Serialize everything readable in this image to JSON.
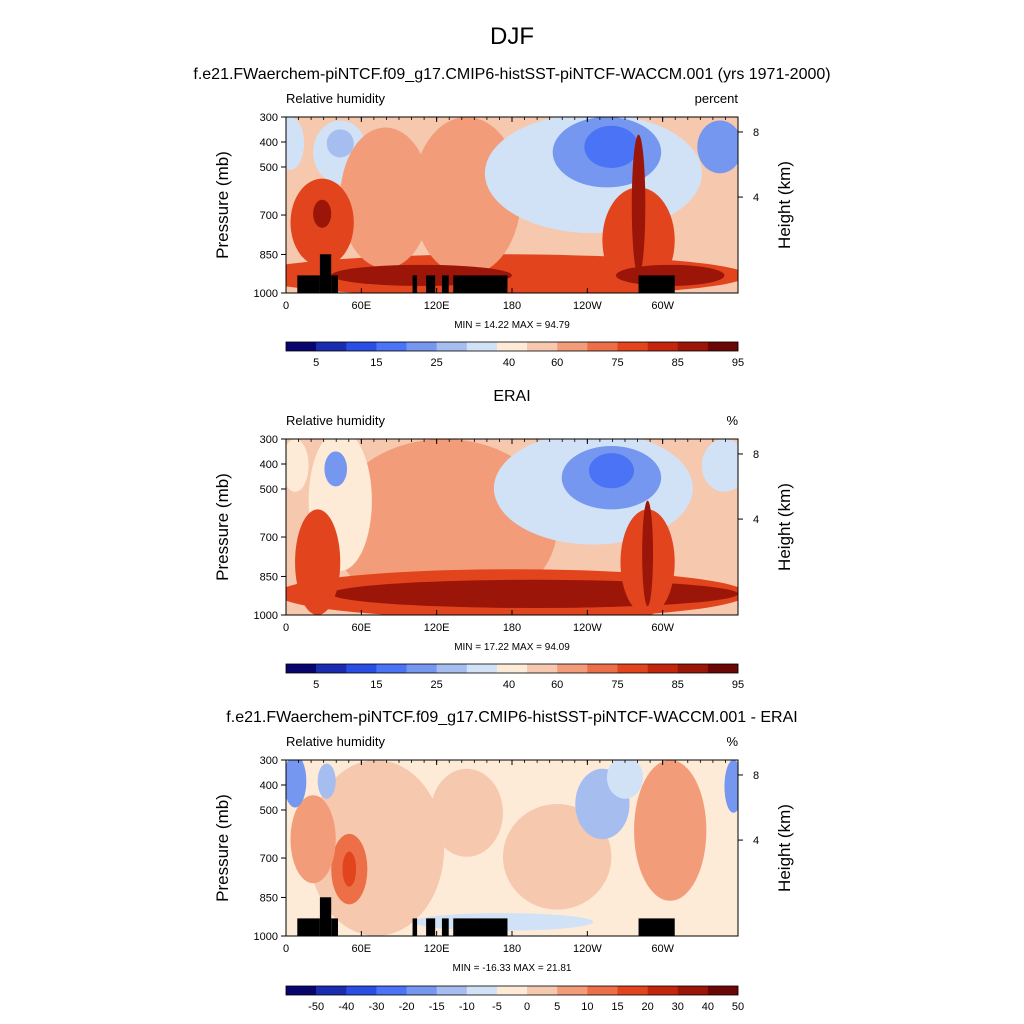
{
  "figure": {
    "title": "DJF",
    "panels_meta": [
      {
        "title": "f.e21.FWaerchem-piNTCF.f09_g17.CMIP6-histSST-piNTCF-WACCM.001 (yrs 1971-2000)"
      },
      {
        "title": "ERAI"
      },
      {
        "title": "f.e21.FWaerchem-piNTCF.f09_g17.CMIP6-histSST-piNTCF-WACCM.001 - ERAI"
      }
    ]
  },
  "chart_data": [
    {
      "type": "heatmap",
      "title": "f.e21.FWaerchem-piNTCF.f09_g17.CMIP6-histSST-piNTCF-WACCM.001 (yrs 1971-2000)",
      "left_label": "Relative humidity",
      "right_label": "percent",
      "xlabel": "",
      "ylabel": "Pressure (mb)",
      "y2label": "Height (km)",
      "x_ticks": [
        "0",
        "60E",
        "120E",
        "180",
        "120W",
        "60W"
      ],
      "y_ticks": [
        "300",
        "400",
        "500",
        "700",
        "850",
        "1000"
      ],
      "y2_ticks": [
        "8",
        "4"
      ],
      "min_max": "MIN = 14.22  MAX = 94.79",
      "colorbar_labels": [
        "5",
        "15",
        "25",
        "40",
        "60",
        "75",
        "85",
        "95"
      ],
      "min": 14.22,
      "max": 94.79
    },
    {
      "type": "heatmap",
      "title": "ERAI",
      "left_label": "Relative humidity",
      "right_label": "%",
      "xlabel": "",
      "ylabel": "Pressure (mb)",
      "y2label": "Height (km)",
      "x_ticks": [
        "0",
        "60E",
        "120E",
        "180",
        "120W",
        "60W"
      ],
      "y_ticks": [
        "300",
        "400",
        "500",
        "700",
        "850",
        "1000"
      ],
      "y2_ticks": [
        "8",
        "4"
      ],
      "min_max": "MIN = 17.22  MAX = 94.09",
      "colorbar_labels": [
        "5",
        "15",
        "25",
        "40",
        "60",
        "75",
        "85",
        "95"
      ],
      "min": 17.22,
      "max": 94.09
    },
    {
      "type": "heatmap",
      "title": "f.e21.FWaerchem-piNTCF.f09_g17.CMIP6-histSST-piNTCF-WACCM.001 - ERAI",
      "left_label": "Relative humidity",
      "right_label": "%",
      "xlabel": "",
      "ylabel": "Pressure (mb)",
      "y2label": "Height (km)",
      "x_ticks": [
        "0",
        "60E",
        "120E",
        "180",
        "120W",
        "60W"
      ],
      "y_ticks": [
        "300",
        "400",
        "500",
        "700",
        "850",
        "1000"
      ],
      "y2_ticks": [
        "8",
        "4"
      ],
      "min_max": "MIN = -16.33  MAX = 21.81",
      "colorbar_labels": [
        "-50",
        "-40",
        "-30",
        "-20",
        "-15",
        "-10",
        "-5",
        "0",
        "5",
        "10",
        "15",
        "20",
        "30",
        "40",
        "50"
      ],
      "min": -16.33,
      "max": 21.81
    }
  ],
  "colors": {
    "palette": [
      "#08066e",
      "#1a2cb0",
      "#2a4de3",
      "#4a73f5",
      "#7597f0",
      "#a6bdf0",
      "#d1e2f7",
      "#fdebd8",
      "#f6c8ae",
      "#f29c79",
      "#ec6f48",
      "#e2441d",
      "#c4260d",
      "#9b1508",
      "#6a0704"
    ]
  }
}
